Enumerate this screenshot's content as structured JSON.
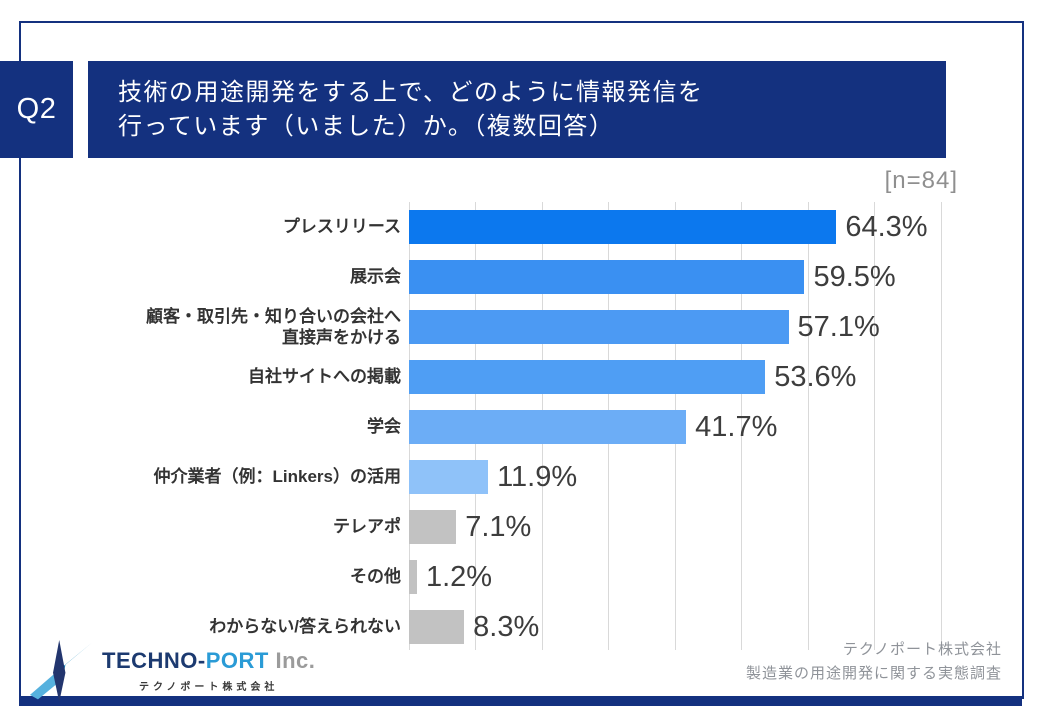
{
  "header": {
    "question_number": "Q2",
    "title_lines": [
      "技術の用途開発をする上で、どのように情報発信を",
      "行っています（いました）か。（複数回答）"
    ]
  },
  "sample_label": "[n=84]",
  "chart_data": {
    "type": "bar",
    "orientation": "horizontal",
    "title": "技術の用途開発をする上で、どのように情報発信を行っています（いました）か。（複数回答）",
    "n": 84,
    "categories": [
      "プレスリリース",
      "展示会",
      "顧客・取引先・知り合いの会社へ\n直接声をかける",
      "自社サイトへの掲載",
      "学会",
      "仲介業者（例：Linkers）の活用",
      "テレアポ",
      "その他",
      "わからない/答えられない"
    ],
    "values": [
      64.3,
      59.5,
      57.1,
      53.6,
      41.7,
      11.9,
      7.1,
      1.2,
      8.3
    ],
    "value_labels": [
      "64.3%",
      "59.5%",
      "57.1%",
      "53.6%",
      "41.7%",
      "11.9%",
      "7.1%",
      "1.2%",
      "8.3%"
    ],
    "bar_colors": [
      "#0c78ee",
      "#3a90f2",
      "#4c9af3",
      "#4f9ef4",
      "#6cadf6",
      "#8fc2f9",
      "#c2c2c2",
      "#c2c2c2",
      "#c2c2c2"
    ],
    "xlim": [
      0,
      82
    ],
    "gridline_interval": 10,
    "gridline_max": 80,
    "grid": true,
    "legend": false
  },
  "footer": {
    "logo": {
      "part1": "TECHNO-",
      "part2": "PORT",
      "part3": " Inc.",
      "subtext": "テクノポート株式会社"
    },
    "credit_lines": [
      "テクノポート株式会社",
      "製造業の用途開発に関する実態調査"
    ]
  },
  "colors": {
    "navy": "#14317f",
    "grid": "#d9d9d9",
    "value_text": "#3d3d3d",
    "category_text": "#333333",
    "n_label_text": "#8f8f8f",
    "credit_text": "#8f9399",
    "gray_bar": "#c2c2c2"
  }
}
